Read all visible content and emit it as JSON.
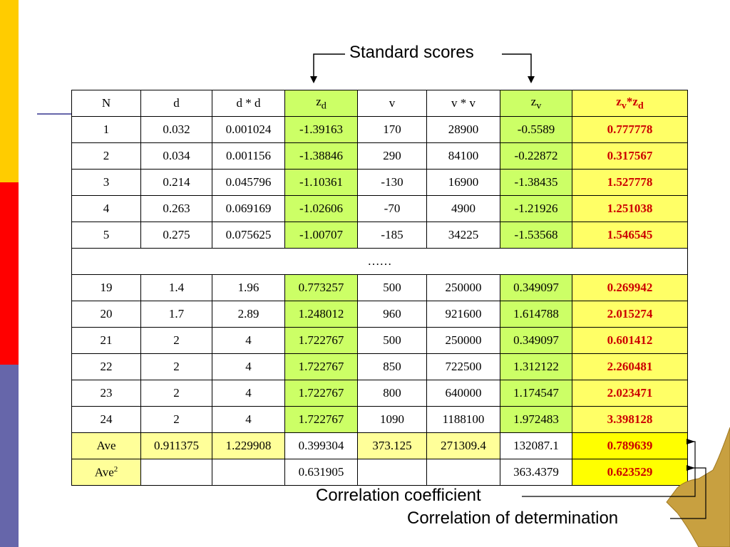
{
  "annotations": {
    "standard_scores": "Standard scores",
    "correlation_coefficient": "Correlation coefficient",
    "correlation_determination": "Correlation of determination"
  },
  "table": {
    "headers": [
      {
        "main": "N",
        "sub": ""
      },
      {
        "main": "d",
        "sub": ""
      },
      {
        "main": "d * d",
        "sub": ""
      },
      {
        "main": "z",
        "sub": "d"
      },
      {
        "main": "v",
        "sub": ""
      },
      {
        "main": "v * v",
        "sub": ""
      },
      {
        "main": "z",
        "sub": "v"
      },
      {
        "main": "z",
        "sub": "v",
        "mid": "*z",
        "sub2": "d"
      }
    ],
    "rows_top": [
      [
        "1",
        "0.032",
        "0.001024",
        "-1.39163",
        "170",
        "28900",
        "-0.5589",
        "0.777778"
      ],
      [
        "2",
        "0.034",
        "0.001156",
        "-1.38846",
        "290",
        "84100",
        "-0.22872",
        "0.317567"
      ],
      [
        "3",
        "0.214",
        "0.045796",
        "-1.10361",
        "-130",
        "16900",
        "-1.38435",
        "1.527778"
      ],
      [
        "4",
        "0.263",
        "0.069169",
        "-1.02606",
        "-70",
        "4900",
        "-1.21926",
        "1.251038"
      ],
      [
        "5",
        "0.275",
        "0.075625",
        "-1.00707",
        "-185",
        "34225",
        "-1.53568",
        "1.546545"
      ]
    ],
    "ellipsis": "……",
    "rows_bottom": [
      [
        "19",
        "1.4",
        "1.96",
        "0.773257",
        "500",
        "250000",
        "0.349097",
        "0.269942"
      ],
      [
        "20",
        "1.7",
        "2.89",
        "1.248012",
        "960",
        "921600",
        "1.614788",
        "2.015274"
      ],
      [
        "21",
        "2",
        "4",
        "1.722767",
        "500",
        "250000",
        "0.349097",
        "0.601412"
      ],
      [
        "22",
        "2",
        "4",
        "1.722767",
        "850",
        "722500",
        "1.312122",
        "2.260481"
      ],
      [
        "23",
        "2",
        "4",
        "1.722767",
        "800",
        "640000",
        "1.174547",
        "2.023471"
      ],
      [
        "24",
        "2",
        "4",
        "1.722767",
        "1090",
        "1188100",
        "1.972483",
        "3.398128"
      ]
    ],
    "ave": [
      "Ave",
      "0.911375",
      "1.229908",
      "0.399304",
      "373.125",
      "271309.4",
      "132087.1",
      "0.789639"
    ],
    "ave2": {
      "label": "Ave",
      "sup": "2",
      "cells": [
        "",
        "",
        "0.631905",
        "",
        "",
        "363.4379",
        "0.623529"
      ]
    }
  },
  "colors": {
    "green": "#ccff66",
    "yellow": "#ffff66",
    "bright_yellow": "#ffff00",
    "red_text": "#cc0000",
    "bar_yellow": "#ffcc00",
    "bar_red": "#ff0000",
    "bar_blue": "#6666aa",
    "hand": "#c8a040"
  }
}
